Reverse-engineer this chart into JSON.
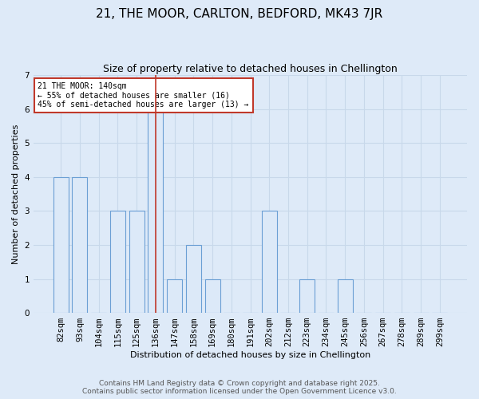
{
  "title": "21, THE MOOR, CARLTON, BEDFORD, MK43 7JR",
  "subtitle": "Size of property relative to detached houses in Chellington",
  "xlabel": "Distribution of detached houses by size in Chellington",
  "ylabel": "Number of detached properties",
  "categories": [
    "82sqm",
    "93sqm",
    "104sqm",
    "115sqm",
    "125sqm",
    "136sqm",
    "147sqm",
    "158sqm",
    "169sqm",
    "180sqm",
    "191sqm",
    "202sqm",
    "212sqm",
    "223sqm",
    "234sqm",
    "245sqm",
    "256sqm",
    "267sqm",
    "278sqm",
    "289sqm",
    "299sqm"
  ],
  "values": [
    4,
    4,
    0,
    3,
    3,
    6,
    1,
    2,
    1,
    0,
    0,
    3,
    0,
    1,
    0,
    1,
    0,
    0,
    0,
    0,
    0
  ],
  "bar_color": "#dce9f8",
  "bar_edge_color": "#6b9fd4",
  "reference_line_index": 5,
  "reference_line_color": "#c0392b",
  "annotation_text": "21 THE MOOR: 140sqm\n← 55% of detached houses are smaller (16)\n45% of semi-detached houses are larger (13) →",
  "annotation_box_color": "white",
  "annotation_box_edge_color": "#c0392b",
  "ylim": [
    0,
    7
  ],
  "yticks": [
    0,
    1,
    2,
    3,
    4,
    5,
    6,
    7
  ],
  "grid_color": "#c8d8ea",
  "bg_color": "#deeaf8",
  "footer_line1": "Contains HM Land Registry data © Crown copyright and database right 2025.",
  "footer_line2": "Contains public sector information licensed under the Open Government Licence v3.0.",
  "title_fontsize": 11,
  "subtitle_fontsize": 9,
  "axis_label_fontsize": 8,
  "tick_fontsize": 7.5,
  "footer_fontsize": 6.5,
  "annot_fontsize": 7
}
